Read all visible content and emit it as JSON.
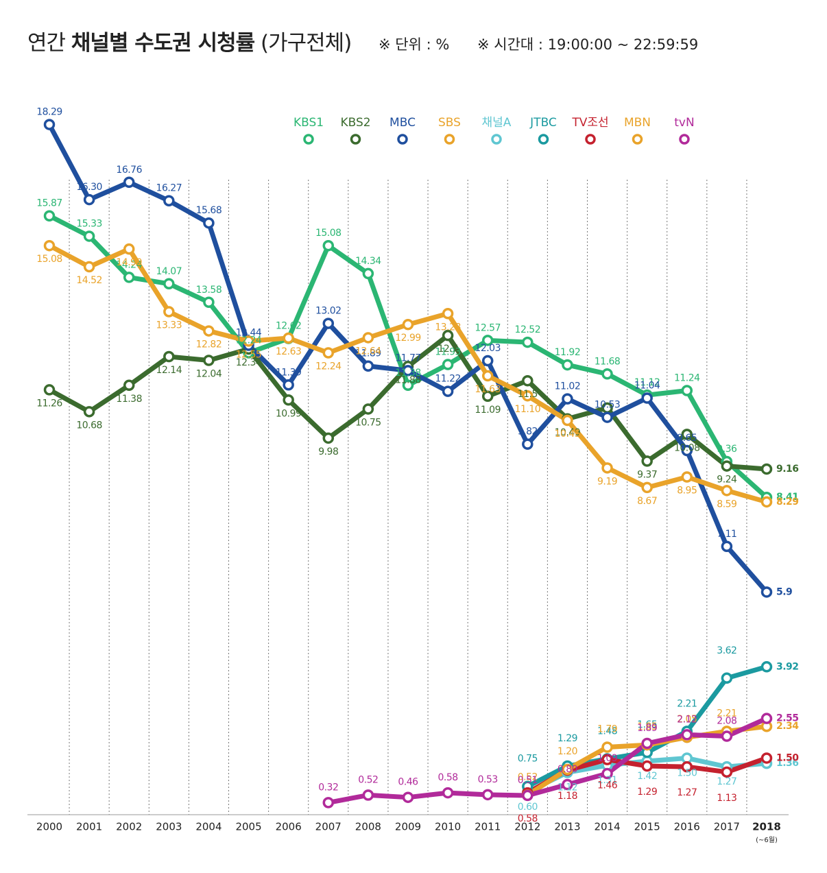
{
  "chart_data": {
    "type": "line",
    "title": [
      "연간",
      "채널별 수도권 시청률",
      "(가구전체)"
    ],
    "notes": [
      "※ 단위 : %",
      "※ 시간대 : 19:00:00 ~ 22:59:59"
    ],
    "categories": [
      "2000",
      "2001",
      "2002",
      "2003",
      "2004",
      "2005",
      "2006",
      "2007",
      "2008",
      "2009",
      "2010",
      "2011",
      "2012",
      "2013",
      "2014",
      "2015",
      "2016",
      "2017",
      "2018"
    ],
    "last_category_note": "(~6월)",
    "ylim": [
      0,
      19.5
    ],
    "series": [
      {
        "name": "KBS1",
        "color": "#2bb673",
        "values": [
          15.87,
          15.33,
          14.24,
          14.07,
          13.58,
          12.24,
          12.62,
          15.08,
          14.34,
          11.38,
          11.93,
          12.57,
          12.52,
          11.92,
          11.68,
          11.12,
          11.24,
          9.36,
          8.41
        ],
        "value_labels": [
          "15.87",
          "15.33",
          "14.24",
          "14.07",
          "13.58",
          "12.24",
          "12.62",
          "15.08",
          "14.34",
          "11.38",
          "11.93",
          "12.57",
          "12.52",
          "11.92",
          "11.68",
          "11.12",
          "11.24",
          "9.36",
          "8.41"
        ]
      },
      {
        "name": "KBS2",
        "color": "#3b6b2e",
        "values": [
          11.26,
          10.68,
          11.38,
          12.14,
          12.04,
          12.34,
          10.99,
          9.98,
          10.75,
          11.88,
          12.7,
          11.09,
          11.5,
          10.49,
          10.78,
          9.37,
          10.08,
          9.24,
          9.16
        ],
        "value_labels": [
          "11.26",
          "10.68",
          "11.38",
          "12.14",
          "12.04",
          "12.34",
          "10.99",
          "9.98",
          "10.75",
          "11.88",
          "12.7",
          "11.09",
          "11.5",
          "10.49",
          null,
          "9.37",
          "10.08",
          "9.24",
          "9.16"
        ]
      },
      {
        "name": "MBC",
        "color": "#1f4f9e",
        "values": [
          18.29,
          16.3,
          16.76,
          16.27,
          15.68,
          12.44,
          11.39,
          13.02,
          11.89,
          11.77,
          11.22,
          12.03,
          9.82,
          11.02,
          10.53,
          11.04,
          9.65,
          7.11,
          5.9
        ],
        "value_labels": [
          "18.29",
          "16.30",
          "16.76",
          "16.27",
          "15.68",
          "12.44",
          "11.39",
          "13.02",
          "11.89",
          "11.77",
          "11.22",
          "12.03",
          "9.82",
          "11.02",
          "10.53",
          "11.04",
          "9.65",
          "7.11",
          "5.9"
        ]
      },
      {
        "name": "SBS",
        "color": "#e9a32a",
        "values": [
          15.08,
          14.52,
          14.99,
          13.33,
          12.82,
          12.55,
          12.63,
          12.24,
          12.64,
          12.99,
          13.28,
          11.63,
          11.1,
          10.45,
          9.19,
          8.67,
          8.95,
          8.59,
          8.29
        ],
        "value_labels": [
          "15.08",
          "14.52",
          "14.99",
          "13.33",
          "12.82",
          "12.55",
          "12.63",
          "12.24",
          "12.64",
          "12.99",
          "13.28",
          "11.63",
          "11.10",
          "10.45",
          "9.19",
          "8.67",
          "8.95",
          "8.59",
          "8.29"
        ]
      },
      {
        "name": "채널A",
        "color": "#5fc6d1",
        "values": [
          null,
          null,
          null,
          null,
          null,
          null,
          null,
          null,
          null,
          null,
          null,
          null,
          0.6,
          1.12,
          1.31,
          1.42,
          1.5,
          1.27,
          1.36
        ],
        "value_labels": [
          null,
          null,
          null,
          null,
          null,
          null,
          null,
          null,
          null,
          null,
          null,
          null,
          "0.60",
          "1.12",
          "1.31",
          "1.42",
          "1.50",
          "1.27",
          "1.36"
        ]
      },
      {
        "name": "JTBC",
        "color": "#1b9aa0",
        "values": [
          null,
          null,
          null,
          null,
          null,
          null,
          null,
          null,
          null,
          null,
          null,
          null,
          0.75,
          1.29,
          1.48,
          1.65,
          2.21,
          3.62,
          3.92
        ],
        "value_labels": [
          null,
          null,
          null,
          null,
          null,
          null,
          null,
          null,
          null,
          null,
          null,
          null,
          "0.75",
          "1.29",
          "1.48",
          "1.65",
          "2.21",
          "3.62",
          "3.92"
        ]
      },
      {
        "name": "TV조선",
        "color": "#c4212e",
        "values": [
          null,
          null,
          null,
          null,
          null,
          null,
          null,
          null,
          null,
          null,
          null,
          null,
          0.58,
          1.18,
          1.46,
          1.29,
          1.27,
          1.13,
          1.5
        ],
        "value_labels": [
          null,
          null,
          null,
          null,
          null,
          null,
          null,
          null,
          null,
          null,
          null,
          null,
          "0.58",
          "1.18",
          "1.46",
          "1.29",
          "1.27",
          "1.13",
          "1.50"
        ]
      },
      {
        "name": "MBN",
        "color": "#e9a32a",
        "values": [
          null,
          null,
          null,
          null,
          null,
          null,
          null,
          null,
          null,
          null,
          null,
          null,
          0.52,
          1.2,
          1.79,
          1.85,
          2.05,
          2.21,
          2.34
        ],
        "value_labels": [
          null,
          null,
          null,
          null,
          null,
          null,
          null,
          null,
          null,
          null,
          null,
          null,
          "0.52",
          "1.20",
          "1.79",
          "1.85",
          "2.05",
          "2.21",
          "2.34"
        ]
      },
      {
        "name": "tvN",
        "color": "#b12a9a",
        "values": [
          null,
          null,
          null,
          null,
          null,
          null,
          null,
          0.32,
          0.52,
          0.46,
          0.58,
          0.53,
          0.51,
          0.8,
          1.09,
          1.89,
          2.12,
          2.08,
          2.55
        ],
        "value_labels": [
          null,
          null,
          null,
          null,
          null,
          null,
          null,
          "0.32",
          "0.52",
          "0.46",
          "0.58",
          "0.53",
          "0.51",
          "0.80",
          "1.09",
          "1.89",
          "2.12",
          "2.08",
          "2.55"
        ]
      }
    ]
  }
}
